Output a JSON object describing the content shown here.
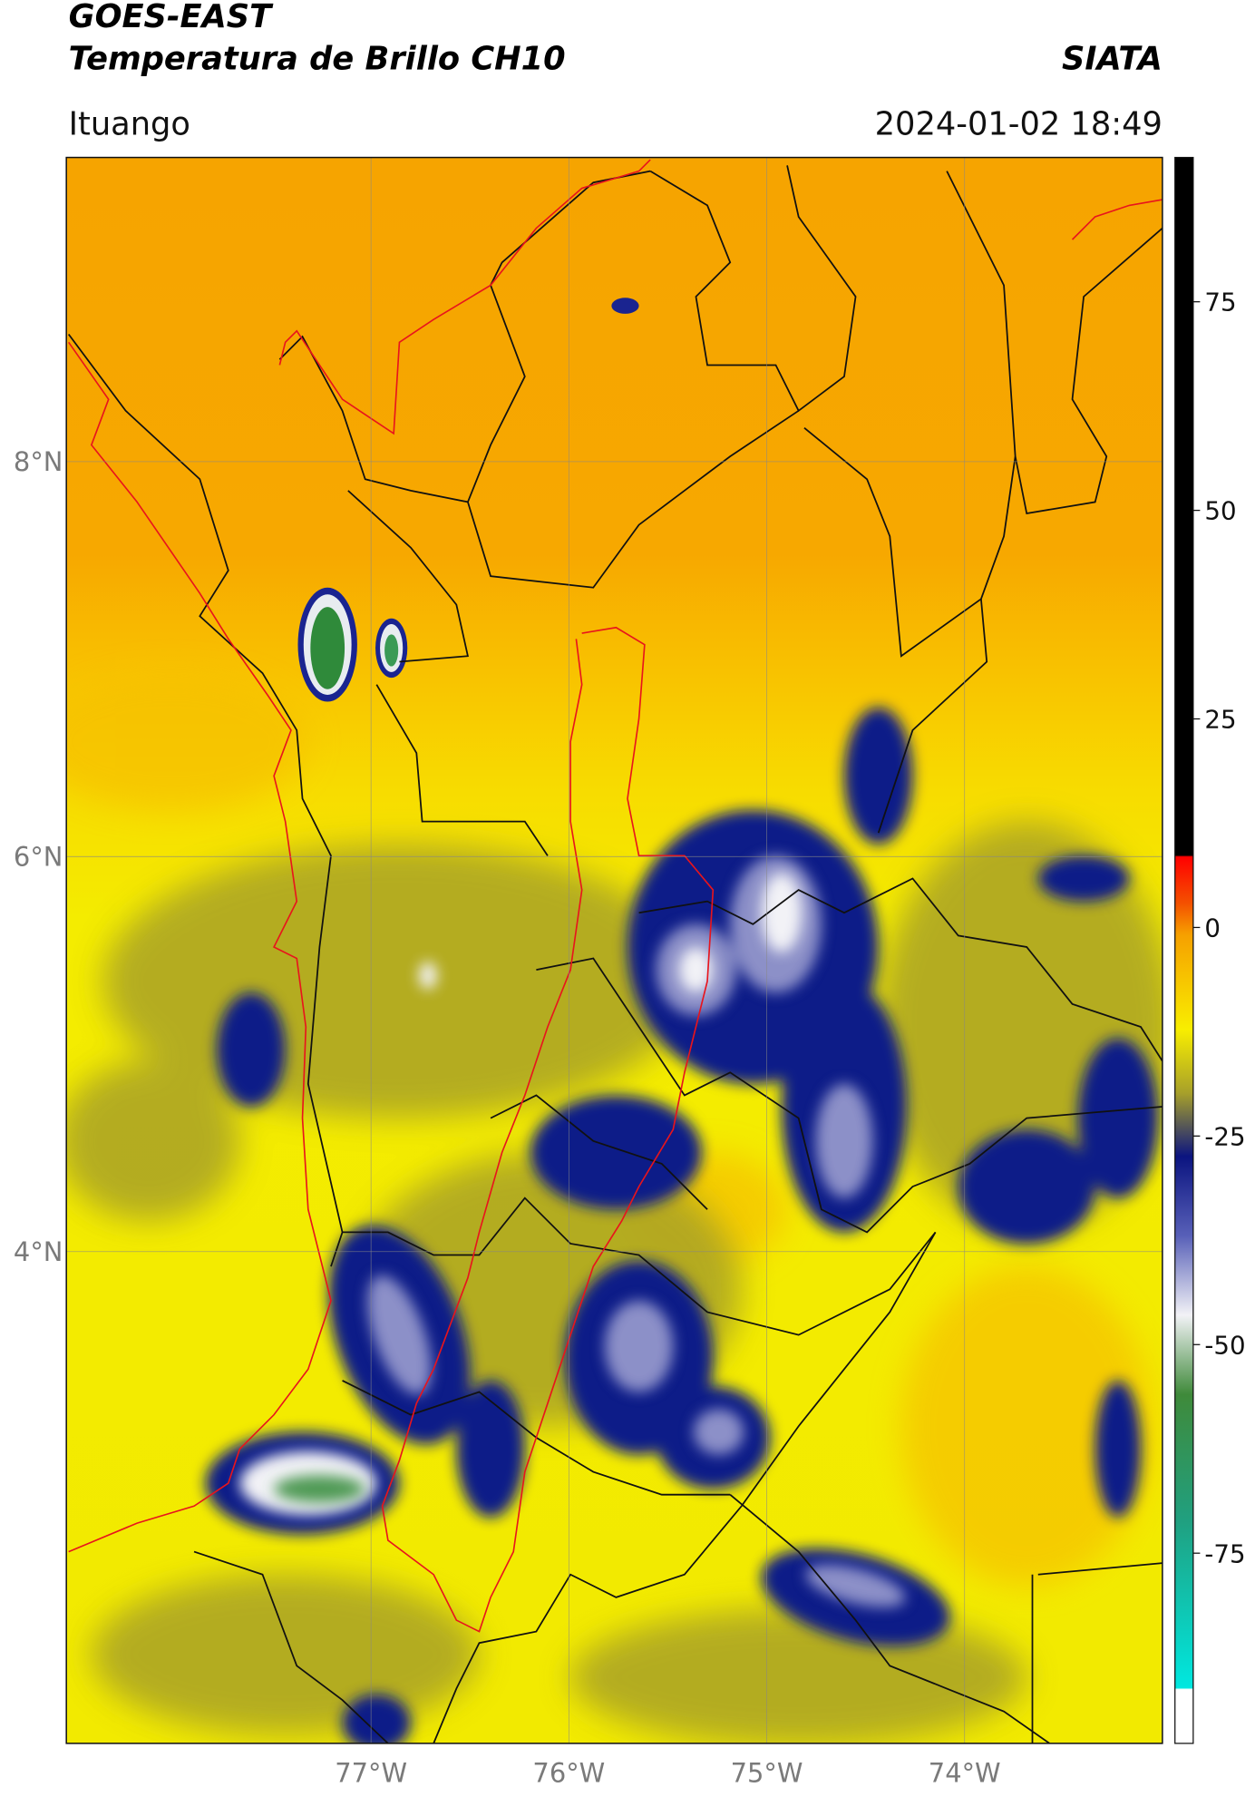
{
  "header": {
    "title": "GOES-EAST",
    "subtitle": "Temperatura de Brillo CH10",
    "source": "SIATA",
    "location": "Ituango",
    "datetime": "2024-01-02 18:49"
  },
  "map": {
    "lonlim": [
      -78.54,
      -73.0
    ],
    "latlim": [
      1.51,
      9.54
    ],
    "lon_ticks": [
      {
        "value": -77,
        "label": "77°W"
      },
      {
        "value": -76,
        "label": "76°W"
      },
      {
        "value": -75,
        "label": "75°W"
      },
      {
        "value": -74,
        "label": "74°W"
      }
    ],
    "lat_ticks": [
      {
        "value": 8,
        "label": "8°N"
      },
      {
        "value": 6,
        "label": "6°N"
      },
      {
        "value": 4,
        "label": "4°N"
      }
    ],
    "grid": true
  },
  "colorbar": {
    "lim": [
      -97.8,
      92.3
    ],
    "ticks": [
      75,
      50,
      25,
      0,
      -25,
      -50,
      -75
    ]
  }
}
